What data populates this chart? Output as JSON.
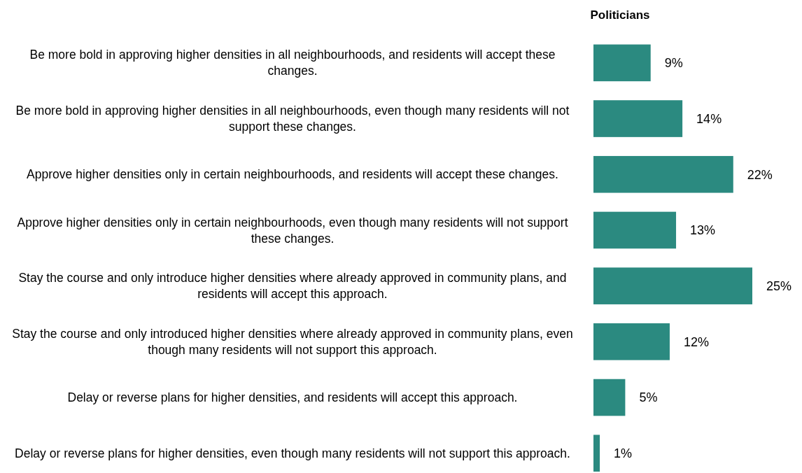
{
  "chart_data": {
    "type": "bar",
    "orientation": "horizontal",
    "title": "Politicians",
    "categories": [
      "Be more bold in approving higher densities in all neighbourhoods, and residents will accept these changes.",
      "Be more bold in approving higher densities in all neighbourhoods, even though many residents will not support these changes.",
      "Approve higher densities only in certain neighbourhoods, and residents will accept these changes.",
      "Approve higher densities only in certain neighbourhoods, even though many residents will not support these changes.",
      "Stay the course and only introduce higher densities where already approved in community plans, and residents will accept this approach.",
      "Stay the course and only introduced higher densities where already approved in community plans, even though many residents will not support this approach.",
      "Delay or reverse plans for higher densities, and residents will accept this approach.",
      "Delay or reverse plans for higher densities, even though many residents will not support this approach."
    ],
    "values": [
      9,
      14,
      22,
      13,
      25,
      12,
      5,
      1
    ],
    "value_labels": [
      "9%",
      "14%",
      "22%",
      "13%",
      "25%",
      "12%",
      "5%",
      "1%"
    ],
    "color": "#2b8a80"
  }
}
